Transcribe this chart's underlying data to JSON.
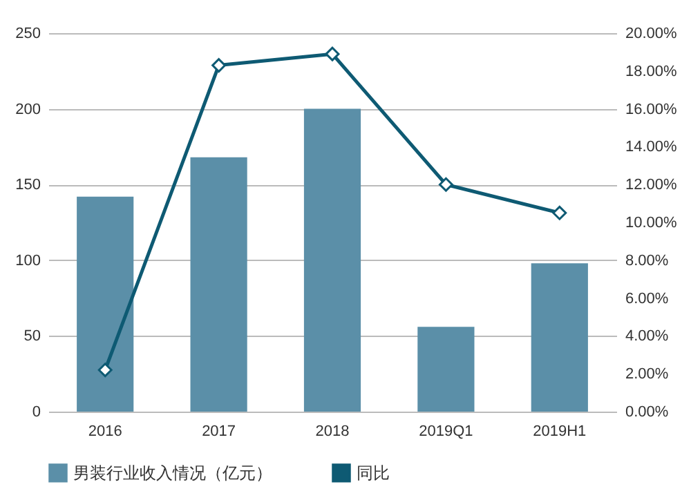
{
  "chart_data": {
    "type": "bar",
    "categories": [
      "2016",
      "2017",
      "2018",
      "2019Q1",
      "2019H1"
    ],
    "series": [
      {
        "name": "男装行业收入情况（亿元）",
        "color": "#5b8fa8",
        "values": [
          142,
          168,
          200,
          56,
          98
        ]
      },
      {
        "name": "同比",
        "type": "line",
        "axis": "y2",
        "color": "#0e5a73",
        "values": [
          2.2,
          18.3,
          18.9,
          12.0,
          10.5
        ],
        "marker": "diamond",
        "line_style": "solid"
      }
    ],
    "ylim": [
      0,
      250
    ],
    "yticks": [
      0,
      50,
      100,
      150,
      200,
      250
    ],
    "y2lim": [
      0,
      20
    ],
    "y2ticks": [
      {
        "value": 0,
        "label": "0.00%"
      },
      {
        "value": 2,
        "label": "2.00%"
      },
      {
        "value": 4,
        "label": "4.00%"
      },
      {
        "value": 6,
        "label": "6.00%"
      },
      {
        "value": 8,
        "label": "8.00%"
      },
      {
        "value": 10,
        "label": "10.00%"
      },
      {
        "value": 12,
        "label": "12.00%"
      },
      {
        "value": 14,
        "label": "14.00%"
      },
      {
        "value": 16,
        "label": "16.00%"
      },
      {
        "value": 18,
        "label": "18.00%"
      },
      {
        "value": 20,
        "label": "20.00%"
      }
    ],
    "grid": "y",
    "legend": "bottom"
  }
}
